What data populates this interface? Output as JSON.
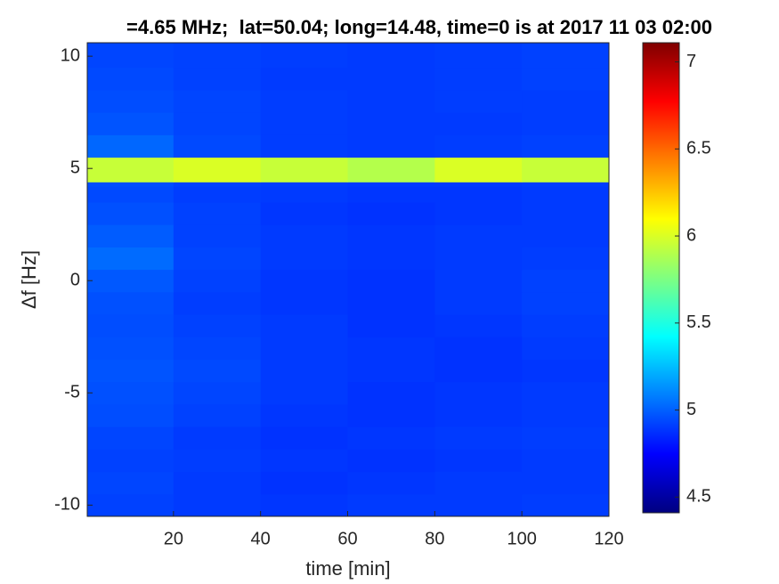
{
  "chart_data": {
    "type": "heatmap",
    "title": "=4.65 MHz;  lat=50.04; long=14.48, time=0 is at 2017 11 03 02:00",
    "x_label": "time [min]",
    "y_label": "Δf [Hz]",
    "colormap": "jet",
    "x_bins": [
      0.2,
      20,
      40,
      60,
      80,
      100,
      120
    ],
    "y_bins": [
      -10.5,
      -9.5,
      -8.5,
      -7.5,
      -6.5,
      -5.5,
      -4.5,
      -3.5,
      -2.5,
      -1.5,
      -0.5,
      0.5,
      1.5,
      2.5,
      3.5,
      4.2,
      4.4,
      5.5,
      6.5,
      7.5,
      8.5,
      9.5,
      10.6
    ],
    "z": [
      [
        4.92,
        4.9,
        4.89,
        4.9,
        4.9,
        4.91
      ],
      [
        4.93,
        4.9,
        4.88,
        4.89,
        4.9,
        4.9
      ],
      [
        4.92,
        4.91,
        4.89,
        4.88,
        4.89,
        4.9
      ],
      [
        4.93,
        4.9,
        4.88,
        4.89,
        4.9,
        4.91
      ],
      [
        4.95,
        4.92,
        4.89,
        4.88,
        4.89,
        4.9
      ],
      [
        4.96,
        4.93,
        4.9,
        4.88,
        4.89,
        4.9
      ],
      [
        4.97,
        4.94,
        4.9,
        4.89,
        4.88,
        4.89
      ],
      [
        4.96,
        4.93,
        4.9,
        4.89,
        4.88,
        4.9
      ],
      [
        4.95,
        4.92,
        4.9,
        4.88,
        4.89,
        4.91
      ],
      [
        4.96,
        4.91,
        4.89,
        4.88,
        4.9,
        4.92
      ],
      [
        4.98,
        4.92,
        4.89,
        4.88,
        4.9,
        4.92
      ],
      [
        5.03,
        4.93,
        4.9,
        4.89,
        4.9,
        4.91
      ],
      [
        4.99,
        4.92,
        4.9,
        4.89,
        4.9,
        4.9
      ],
      [
        4.96,
        4.92,
        4.89,
        4.88,
        4.89,
        4.9
      ],
      [
        4.94,
        4.91,
        4.9,
        4.89,
        4.89,
        4.9
      ],
      [
        4.95,
        4.92,
        4.91,
        4.9,
        4.9,
        4.91
      ],
      [
        5.95,
        6.0,
        5.95,
        5.9,
        6.0,
        5.95
      ],
      [
        5.02,
        4.94,
        4.91,
        4.9,
        4.91,
        4.92
      ],
      [
        4.97,
        4.93,
        4.91,
        4.9,
        4.9,
        4.91
      ],
      [
        4.95,
        4.93,
        4.91,
        4.9,
        4.91,
        4.91
      ],
      [
        4.94,
        4.92,
        4.9,
        4.9,
        4.91,
        4.92
      ],
      [
        4.93,
        4.92,
        4.91,
        4.9,
        4.91,
        4.92
      ]
    ],
    "xlim": [
      0.2,
      120
    ],
    "xticks": [
      20,
      40,
      60,
      80,
      100,
      120
    ],
    "ylim": [
      -10.5,
      10.6
    ],
    "yticks": [
      -10,
      -5,
      0,
      5,
      10
    ],
    "clim": [
      4.41,
      7.11
    ],
    "cticks": [
      4.5,
      5,
      5.5,
      6,
      6.5,
      7
    ]
  }
}
